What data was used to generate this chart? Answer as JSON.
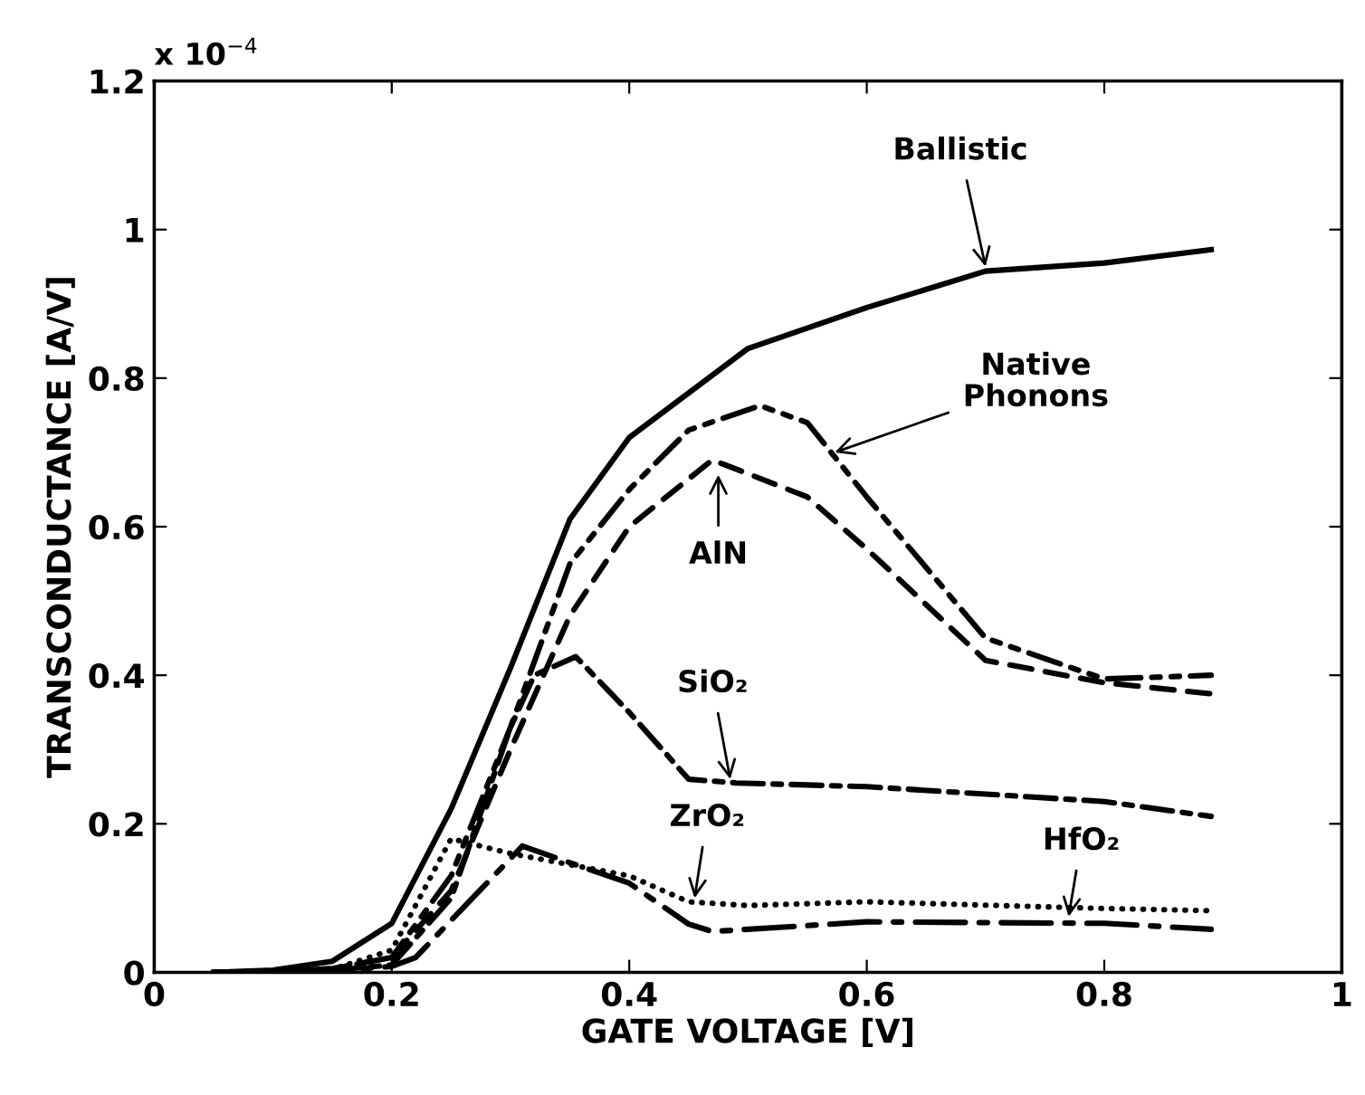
{
  "chart_data": {
    "type": "line",
    "xlabel": "GATE VOLTAGE [V]",
    "ylabel": "TRANSCONDUCTANCE [A/V]",
    "xlim": [
      0,
      1
    ],
    "xticks": [
      0,
      0.2,
      0.4,
      0.6,
      0.8,
      1
    ],
    "ylim": [
      0,
      1.2
    ],
    "yticks": [
      0,
      0.2,
      0.4,
      0.6,
      0.8,
      1,
      1.2
    ],
    "grid": false,
    "legend": false,
    "marker": "none",
    "series": [
      {
        "color": "#000000",
        "line_style": "solid",
        "x": [
          0.05,
          0.1,
          0.15,
          0.2,
          0.25,
          0.3,
          0.35,
          0.4,
          0.45,
          0.5,
          0.6,
          0.7,
          0.8,
          0.89
        ],
        "values": [
          0,
          0.003,
          0.015,
          0.066,
          0.22,
          0.41,
          0.61,
          0.72,
          0.78,
          0.84,
          0.895,
          0.944,
          0.955,
          0.973
        ]
      },
      {
        "color": "#000000",
        "line_style": "dashdotdot",
        "x": [
          0.05,
          0.1,
          0.15,
          0.2,
          0.25,
          0.3,
          0.35,
          0.4,
          0.45,
          0.51,
          0.55,
          0.6,
          0.7,
          0.8,
          0.89
        ],
        "values": [
          0,
          0.001,
          0.005,
          0.02,
          0.13,
          0.33,
          0.55,
          0.65,
          0.73,
          0.763,
          0.74,
          0.64,
          0.45,
          0.395,
          0.4
        ]
      },
      {
        "color": "#000000",
        "line_style": "dashed",
        "x": [
          0.05,
          0.1,
          0.15,
          0.2,
          0.25,
          0.3,
          0.35,
          0.4,
          0.47,
          0.55,
          0.6,
          0.7,
          0.8,
          0.89
        ],
        "values": [
          0,
          0.001,
          0.005,
          0.02,
          0.11,
          0.3,
          0.48,
          0.6,
          0.69,
          0.64,
          0.57,
          0.42,
          0.39,
          0.375
        ]
      },
      {
        "color": "#000000",
        "line_style": "dashdot",
        "x": [
          0.05,
          0.1,
          0.15,
          0.2,
          0.25,
          0.3,
          0.32,
          0.355,
          0.4,
          0.45,
          0.49,
          0.6,
          0.8,
          0.89
        ],
        "values": [
          0,
          0.001,
          0.003,
          0.01,
          0.1,
          0.33,
          0.4,
          0.425,
          0.35,
          0.26,
          0.255,
          0.25,
          0.23,
          0.21
        ]
      },
      {
        "color": "#000000",
        "line_style": "dotted",
        "x": [
          0.05,
          0.1,
          0.15,
          0.2,
          0.25,
          0.3,
          0.4,
          0.45,
          0.5,
          0.6,
          0.8,
          0.89
        ],
        "values": [
          0,
          0.001,
          0.004,
          0.03,
          0.18,
          0.16,
          0.13,
          0.095,
          0.09,
          0.095,
          0.086,
          0.083
        ]
      },
      {
        "color": "#000000",
        "line_style": "longdashdot",
        "x": [
          0.05,
          0.1,
          0.15,
          0.2,
          0.22,
          0.25,
          0.31,
          0.4,
          0.45,
          0.47,
          0.6,
          0.8,
          0.89
        ],
        "values": [
          0,
          0,
          0.002,
          0.008,
          0.02,
          0.07,
          0.17,
          0.12,
          0.065,
          0.055,
          0.068,
          0.066,
          0.058
        ]
      }
    ],
    "annotations": [
      "x 10$^{−4}$",
      {
        "text": "Ballistic",
        "x": 0.7,
        "y": 0.95
      },
      {
        "text": "Native\nPhonons",
        "x": 0.573,
        "y": 0.7
      },
      {
        "text": "AlN",
        "x": 0.475,
        "y": 0.67
      },
      {
        "text": "SiO₂",
        "x": 0.485,
        "y": 0.26
      },
      {
        "text": "ZrO₂",
        "x": 0.455,
        "y": 0.1
      },
      {
        "text": "HfO₂",
        "x": 0.77,
        "y": 0.075
      }
    ]
  }
}
